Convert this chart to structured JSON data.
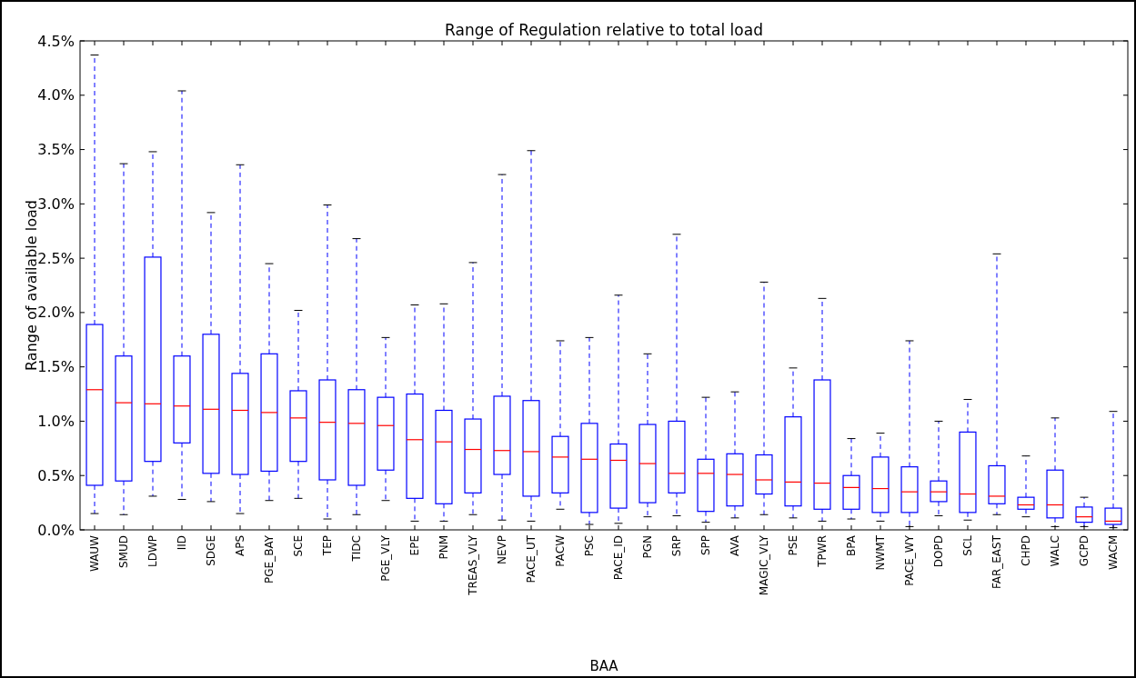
{
  "chart_data": {
    "type": "box",
    "title": "Range of Regulation relative to total load",
    "xlabel": "BAA",
    "ylabel": "Range of available load",
    "categories": [
      "WAUW",
      "SMUD",
      "LDWP",
      "IID",
      "SDGE",
      "APS",
      "PGE_BAY",
      "SCE",
      "TEP",
      "TIDC",
      "PGE_VLY",
      "EPE",
      "PNM",
      "TREAS_VLY",
      "NEVP",
      "PACE_UT",
      "PACW",
      "PSC",
      "PACE_ID",
      "PGN",
      "SRP",
      "SPP",
      "AVA",
      "MAGIC_VLY",
      "PSE",
      "TPWR",
      "BPA",
      "NWMT",
      "PACE_WY",
      "DOPD",
      "SCL",
      "FAR_EAST",
      "CHPD",
      "WALC",
      "GCPD",
      "WACM"
    ],
    "color": "#0000ff",
    "boxes": [
      {
        "low": 0.15,
        "q1": 0.41,
        "median": 1.29,
        "q3": 1.89,
        "high": 4.37
      },
      {
        "low": 0.14,
        "q1": 0.45,
        "median": 1.17,
        "q3": 1.6,
        "high": 3.37
      },
      {
        "low": 0.31,
        "q1": 0.63,
        "median": 1.16,
        "q3": 2.51,
        "high": 3.48
      },
      {
        "low": 0.28,
        "q1": 0.8,
        "median": 1.14,
        "q3": 1.6,
        "high": 4.04
      },
      {
        "low": 0.26,
        "q1": 0.52,
        "median": 1.11,
        "q3": 1.8,
        "high": 2.92
      },
      {
        "low": 0.15,
        "q1": 0.51,
        "median": 1.1,
        "q3": 1.44,
        "high": 3.36
      },
      {
        "low": 0.27,
        "q1": 0.54,
        "median": 1.08,
        "q3": 1.62,
        "high": 2.45
      },
      {
        "low": 0.29,
        "q1": 0.63,
        "median": 1.03,
        "q3": 1.28,
        "high": 2.02
      },
      {
        "low": 0.1,
        "q1": 0.46,
        "median": 0.99,
        "q3": 1.38,
        "high": 2.99
      },
      {
        "low": 0.14,
        "q1": 0.41,
        "median": 0.98,
        "q3": 1.29,
        "high": 2.68
      },
      {
        "low": 0.27,
        "q1": 0.55,
        "median": 0.96,
        "q3": 1.22,
        "high": 1.77
      },
      {
        "low": 0.08,
        "q1": 0.29,
        "median": 0.83,
        "q3": 1.25,
        "high": 2.07
      },
      {
        "low": 0.08,
        "q1": 0.24,
        "median": 0.81,
        "q3": 1.1,
        "high": 2.08
      },
      {
        "low": 0.14,
        "q1": 0.34,
        "median": 0.74,
        "q3": 1.02,
        "high": 2.46
      },
      {
        "low": 0.09,
        "q1": 0.51,
        "median": 0.73,
        "q3": 1.23,
        "high": 3.27
      },
      {
        "low": 0.08,
        "q1": 0.31,
        "median": 0.72,
        "q3": 1.19,
        "high": 3.49
      },
      {
        "low": 0.19,
        "q1": 0.34,
        "median": 0.67,
        "q3": 0.86,
        "high": 1.74
      },
      {
        "low": 0.05,
        "q1": 0.16,
        "median": 0.65,
        "q3": 0.98,
        "high": 1.77
      },
      {
        "low": 0.06,
        "q1": 0.2,
        "median": 0.64,
        "q3": 0.79,
        "high": 2.16
      },
      {
        "low": 0.12,
        "q1": 0.25,
        "median": 0.61,
        "q3": 0.97,
        "high": 1.62
      },
      {
        "low": 0.13,
        "q1": 0.34,
        "median": 0.52,
        "q3": 1.0,
        "high": 2.72
      },
      {
        "low": 0.07,
        "q1": 0.17,
        "median": 0.52,
        "q3": 0.65,
        "high": 1.22
      },
      {
        "low": 0.11,
        "q1": 0.22,
        "median": 0.51,
        "q3": 0.7,
        "high": 1.27
      },
      {
        "low": 0.14,
        "q1": 0.33,
        "median": 0.46,
        "q3": 0.69,
        "high": 2.28
      },
      {
        "low": 0.11,
        "q1": 0.22,
        "median": 0.44,
        "q3": 1.04,
        "high": 1.49
      },
      {
        "low": 0.08,
        "q1": 0.19,
        "median": 0.43,
        "q3": 1.38,
        "high": 2.13
      },
      {
        "low": 0.1,
        "q1": 0.19,
        "median": 0.39,
        "q3": 0.5,
        "high": 0.84
      },
      {
        "low": 0.08,
        "q1": 0.16,
        "median": 0.38,
        "q3": 0.67,
        "high": 0.89
      },
      {
        "low": 0.03,
        "q1": 0.16,
        "median": 0.35,
        "q3": 0.58,
        "high": 1.74
      },
      {
        "low": 0.13,
        "q1": 0.26,
        "median": 0.35,
        "q3": 0.45,
        "high": 1.0
      },
      {
        "low": 0.09,
        "q1": 0.16,
        "median": 0.33,
        "q3": 0.9,
        "high": 1.2
      },
      {
        "low": 0.14,
        "q1": 0.24,
        "median": 0.31,
        "q3": 0.59,
        "high": 2.54
      },
      {
        "low": 0.12,
        "q1": 0.19,
        "median": 0.23,
        "q3": 0.3,
        "high": 0.68
      },
      {
        "low": 0.03,
        "q1": 0.11,
        "median": 0.23,
        "q3": 0.55,
        "high": 1.03
      },
      {
        "low": 0.03,
        "q1": 0.07,
        "median": 0.12,
        "q3": 0.21,
        "high": 0.3
      },
      {
        "low": 0.02,
        "q1": 0.05,
        "median": 0.08,
        "q3": 0.2,
        "high": 1.09
      }
    ],
    "ylim": [
      0,
      4.5
    ],
    "yticks": [
      {
        "value": 0,
        "label": "0.0%"
      },
      {
        "value": 0.5,
        "label": "0.5%"
      },
      {
        "value": 1,
        "label": "1.0%"
      },
      {
        "value": 1.5,
        "label": "1.5%"
      },
      {
        "value": 2,
        "label": "2.0%"
      },
      {
        "value": 2.5,
        "label": "2.5%"
      },
      {
        "value": 3,
        "label": "3.0%"
      },
      {
        "value": 3.5,
        "label": "3.5%"
      },
      {
        "value": 4,
        "label": "4.0%"
      },
      {
        "value": 4.5,
        "label": "4.5%"
      }
    ],
    "grid": false
  }
}
